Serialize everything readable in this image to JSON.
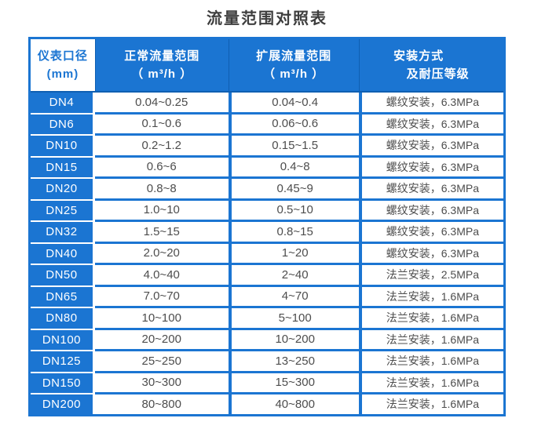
{
  "title": "流量范围对照表",
  "colors": {
    "primary_blue": "#1b75d2",
    "dark_blue_border": "#0f5fb2",
    "header_first_cell_bg": "#ffffff",
    "header_first_cell_text": "#1b75d2",
    "header_text": "#ffffff",
    "data_text": "#4d4d4d",
    "title_text": "#3e3e3e"
  },
  "table": {
    "headers": [
      {
        "line1": "仪表口径",
        "line2": "(mm)"
      },
      {
        "line1": "正常流量范围",
        "line2": "（ m³/h ）"
      },
      {
        "line1": "扩展流量范围",
        "line2": "（ m³/h ）"
      },
      {
        "line1": "安装方式",
        "line2": "及耐压等级"
      }
    ],
    "rows": [
      {
        "dn": "DN4",
        "normal": "0.04~0.25",
        "extended": "0.04~0.4",
        "install": "螺纹安装，6.3MPa"
      },
      {
        "dn": "DN6",
        "normal": "0.1~0.6",
        "extended": "0.06~0.6",
        "install": "螺纹安装，6.3MPa"
      },
      {
        "dn": "DN10",
        "normal": "0.2~1.2",
        "extended": "0.15~1.5",
        "install": "螺纹安装，6.3MPa"
      },
      {
        "dn": "DN15",
        "normal": "0.6~6",
        "extended": "0.4~8",
        "install": "螺纹安装，6.3MPa"
      },
      {
        "dn": "DN20",
        "normal": "0.8~8",
        "extended": "0.45~9",
        "install": "螺纹安装，6.3MPa"
      },
      {
        "dn": "DN25",
        "normal": "1.0~10",
        "extended": "0.5~10",
        "install": "螺纹安装，6.3MPa"
      },
      {
        "dn": "DN32",
        "normal": "1.5~15",
        "extended": "0.8~15",
        "install": "螺纹安装，6.3MPa"
      },
      {
        "dn": "DN40",
        "normal": "2.0~20",
        "extended": "1~20",
        "install": "螺纹安装，6.3MPa"
      },
      {
        "dn": "DN50",
        "normal": "4.0~40",
        "extended": "2~40",
        "install": "法兰安装，2.5MPa"
      },
      {
        "dn": "DN65",
        "normal": "7.0~70",
        "extended": "4~70",
        "install": "法兰安装，1.6MPa"
      },
      {
        "dn": "DN80",
        "normal": "10~100",
        "extended": "5~100",
        "install": "法兰安装，1.6MPa"
      },
      {
        "dn": "DN100",
        "normal": "20~200",
        "extended": "10~200",
        "install": "法兰安装，1.6MPa"
      },
      {
        "dn": "DN125",
        "normal": "25~250",
        "extended": "13~250",
        "install": "法兰安装，1.6MPa"
      },
      {
        "dn": "DN150",
        "normal": "30~300",
        "extended": "15~300",
        "install": "法兰安装，1.6MPa"
      },
      {
        "dn": "DN200",
        "normal": "80~800",
        "extended": "40~800",
        "install": "法兰安装，1.6MPa"
      }
    ]
  }
}
